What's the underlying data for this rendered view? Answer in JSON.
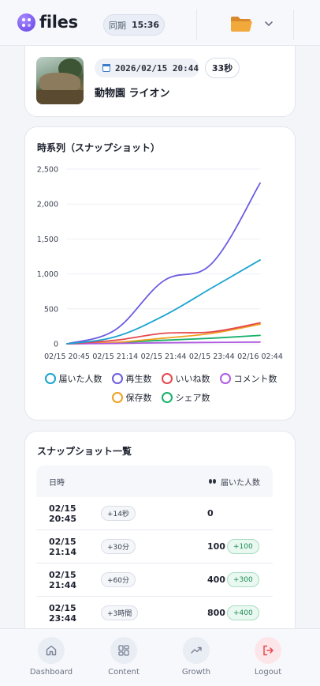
{
  "header": {
    "app_name": "files",
    "sync_label": "同期",
    "sync_time": "15:36"
  },
  "item": {
    "datetime": "2026/02/15 20:44",
    "duration": "33秒",
    "title": "動物園 ライオン"
  },
  "chart_card": {
    "title": "時系列（スナップショット）"
  },
  "chart_data": {
    "type": "line",
    "title": "時系列（スナップショット）",
    "x_labels": [
      "02/15 20:45",
      "02/15 21:14",
      "02/15 21:44",
      "02/15 23:44",
      "02/16 02:44"
    ],
    "y_ticks": [
      "0",
      "500",
      "1,000",
      "1,500",
      "2,000",
      "2,500"
    ],
    "ylim": [
      0,
      2500
    ],
    "grid": true,
    "legend_position": "bottom",
    "series": [
      {
        "name": "届いた人数",
        "color": "#1aa3d1",
        "values": [
          0,
          100,
          400,
          800,
          1200
        ]
      },
      {
        "name": "再生数",
        "color": "#6b5ce0",
        "values": [
          0,
          200,
          900,
          1150,
          2300
        ]
      },
      {
        "name": "いいね数",
        "color": "#e5484d",
        "values": [
          0,
          50,
          150,
          170,
          300
        ]
      },
      {
        "name": "コメント数",
        "color": "#b05ae0",
        "values": [
          0,
          5,
          15,
          20,
          25
        ]
      },
      {
        "name": "保存数",
        "color": "#f0a020",
        "values": [
          0,
          20,
          80,
          150,
          280
        ]
      },
      {
        "name": "シェア数",
        "color": "#18b06a",
        "values": [
          0,
          15,
          50,
          80,
          120
        ]
      }
    ]
  },
  "snapshot": {
    "title": "スナップショット一覧",
    "col_datetime": "日時",
    "col_reach": "届いた人数",
    "rows": [
      {
        "time": "02/15 20:45",
        "tag": "+14秒",
        "value": "0",
        "delta": ""
      },
      {
        "time": "02/15 21:14",
        "tag": "+30分",
        "value": "100",
        "delta": "+100"
      },
      {
        "time": "02/15 21:44",
        "tag": "+60分",
        "value": "400",
        "delta": "+300"
      },
      {
        "time": "02/15 23:44",
        "tag": "+3時間",
        "value": "800",
        "delta": "+400"
      }
    ]
  },
  "nav": {
    "dashboard": "Dashboard",
    "content": "Content",
    "growth": "Growth",
    "logout": "Logout"
  },
  "colors": {
    "accent": "#7c5cf0",
    "logout": "#e5484d",
    "positive": "#1c8a55"
  }
}
